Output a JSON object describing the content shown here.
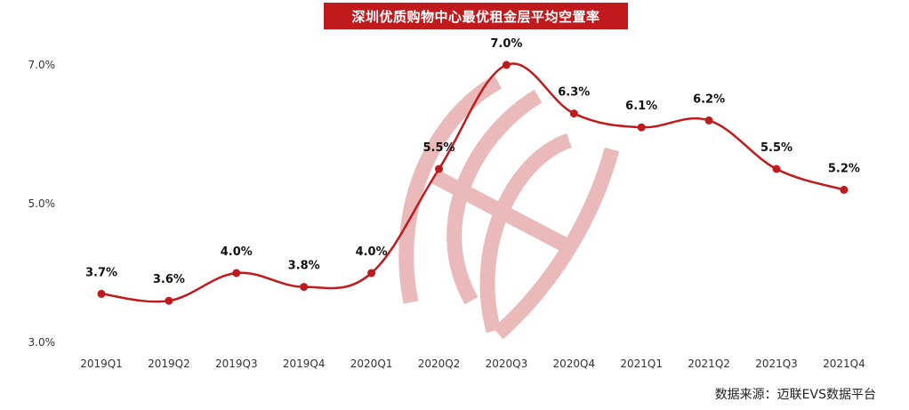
{
  "chart_data": {
    "type": "line",
    "title": "深圳优质购物中心最优租金层平均空置率",
    "categories": [
      "2019Q1",
      "2019Q2",
      "2019Q3",
      "2019Q4",
      "2020Q1",
      "2020Q2",
      "2020Q3",
      "2020Q4",
      "2021Q1",
      "2021Q2",
      "2021Q3",
      "2021Q4"
    ],
    "series": [
      {
        "values": [
          3.7,
          3.6,
          4.0,
          3.8,
          4.0,
          5.5,
          7.0,
          6.3,
          6.1,
          6.2,
          5.5,
          5.2
        ],
        "labels": [
          "3.7%",
          "3.6%",
          "4.0%",
          "3.8%",
          "4.0%",
          "5.5%",
          "7.0%",
          "6.3%",
          "6.1%",
          "6.2%",
          "5.5%",
          "5.2%"
        ]
      }
    ],
    "ylim": [
      3.0,
      7.0
    ],
    "yticks": [
      {
        "value": 3.0,
        "label": "3.0%"
      },
      {
        "value": 5.0,
        "label": "5.0%"
      },
      {
        "value": 7.0,
        "label": "7.0%"
      }
    ],
    "xlabel": "",
    "ylabel": "",
    "grid": false,
    "line_color": "#c01a1c",
    "title_bg": "#c01a1c"
  },
  "source": "数据来源：迈联EVS数据平台"
}
